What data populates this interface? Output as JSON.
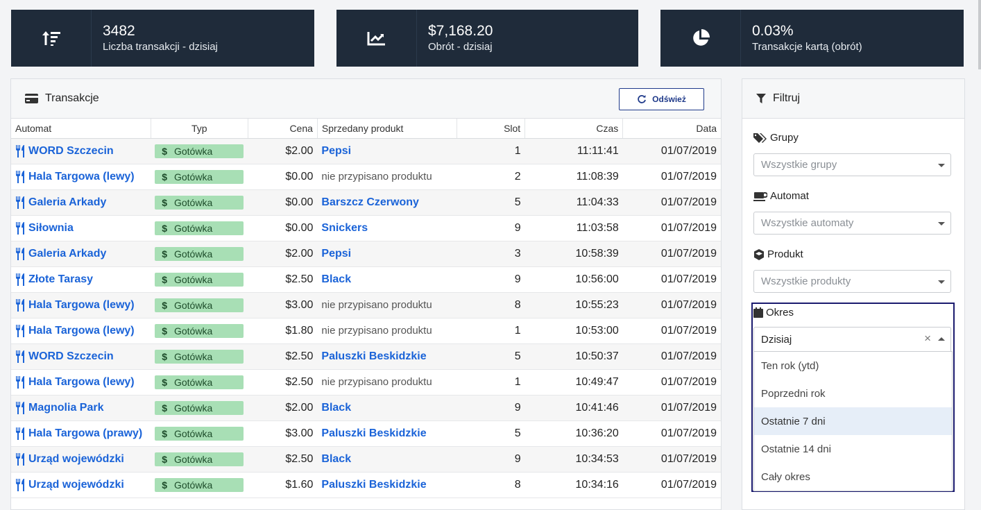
{
  "kpis": [
    {
      "value": "3482",
      "label": "Liczba transakcji - dzisiaj",
      "icon": "sort-amount-icon"
    },
    {
      "value": "$7,168.20",
      "label": "Obrót - dzisiaj",
      "icon": "chart-line-icon"
    },
    {
      "value": "0.03%",
      "label": "Transakcje kartą (obrót)",
      "icon": "pie-chart-icon"
    }
  ],
  "transactions": {
    "title": "Transakcje",
    "refresh_label": "Odśwież",
    "columns": [
      "Automat",
      "Typ",
      "Cena",
      "Sprzedany produkt",
      "Slot",
      "Czas",
      "Data"
    ],
    "rows": [
      {
        "machine": "WORD Szczecin",
        "type": "Gotówka",
        "price": "$2.00",
        "product": "Pepsi",
        "assigned": true,
        "slot": "1",
        "time": "11:11:41",
        "date": "01/07/2019"
      },
      {
        "machine": "Hala Targowa (lewy)",
        "type": "Gotówka",
        "price": "$0.00",
        "product": "nie przypisano produktu",
        "assigned": false,
        "slot": "2",
        "time": "11:08:39",
        "date": "01/07/2019"
      },
      {
        "machine": "Galeria Arkady",
        "type": "Gotówka",
        "price": "$0.00",
        "product": "Barszcz Czerwony",
        "assigned": true,
        "slot": "5",
        "time": "11:04:33",
        "date": "01/07/2019"
      },
      {
        "machine": "Siłownia",
        "type": "Gotówka",
        "price": "$0.00",
        "product": "Snickers",
        "assigned": true,
        "slot": "9",
        "time": "11:03:58",
        "date": "01/07/2019"
      },
      {
        "machine": "Galeria Arkady",
        "type": "Gotówka",
        "price": "$2.00",
        "product": "Pepsi",
        "assigned": true,
        "slot": "3",
        "time": "10:58:39",
        "date": "01/07/2019"
      },
      {
        "machine": "Złote Tarasy",
        "type": "Gotówka",
        "price": "$2.50",
        "product": "Black",
        "assigned": true,
        "slot": "9",
        "time": "10:56:00",
        "date": "01/07/2019"
      },
      {
        "machine": "Hala Targowa (lewy)",
        "type": "Gotówka",
        "price": "$3.00",
        "product": "nie przypisano produktu",
        "assigned": false,
        "slot": "8",
        "time": "10:55:23",
        "date": "01/07/2019"
      },
      {
        "machine": "Hala Targowa (lewy)",
        "type": "Gotówka",
        "price": "$1.80",
        "product": "nie przypisano produktu",
        "assigned": false,
        "slot": "1",
        "time": "10:53:00",
        "date": "01/07/2019"
      },
      {
        "machine": "WORD Szczecin",
        "type": "Gotówka",
        "price": "$2.50",
        "product": "Paluszki Beskidzkie",
        "assigned": true,
        "slot": "5",
        "time": "10:50:37",
        "date": "01/07/2019"
      },
      {
        "machine": "Hala Targowa (lewy)",
        "type": "Gotówka",
        "price": "$2.50",
        "product": "nie przypisano produktu",
        "assigned": false,
        "slot": "1",
        "time": "10:49:47",
        "date": "01/07/2019"
      },
      {
        "machine": "Magnolia Park",
        "type": "Gotówka",
        "price": "$2.00",
        "product": "Black",
        "assigned": true,
        "slot": "9",
        "time": "10:41:46",
        "date": "01/07/2019"
      },
      {
        "machine": "Hala Targowa (prawy)",
        "type": "Gotówka",
        "price": "$3.00",
        "product": "Paluszki Beskidzkie",
        "assigned": true,
        "slot": "5",
        "time": "10:36:20",
        "date": "01/07/2019"
      },
      {
        "machine": "Urząd wojewódzki",
        "type": "Gotówka",
        "price": "$2.50",
        "product": "Black",
        "assigned": true,
        "slot": "9",
        "time": "10:34:53",
        "date": "01/07/2019"
      },
      {
        "machine": "Urząd wojewódzki",
        "type": "Gotówka",
        "price": "$1.60",
        "product": "Paluszki Beskidzkie",
        "assigned": true,
        "slot": "8",
        "time": "10:34:16",
        "date": "01/07/2019"
      }
    ]
  },
  "filter": {
    "title": "Filtruj",
    "groups_label": "Grupy",
    "groups_placeholder": "Wszystkie grupy",
    "machine_label": "Automat",
    "machine_placeholder": "Wszystkie automaty",
    "product_label": "Produkt",
    "product_placeholder": "Wszystkie produkty",
    "period_label": "Okres",
    "period_value": "Dzisiaj",
    "clear_symbol": "×",
    "period_options": [
      "Ten rok (ytd)",
      "Poprzedni rok",
      "Ostatnie 7 dni",
      "Ostatnie 14 dni",
      "Cały okres"
    ],
    "highlighted_option": "Ostatnie 7 dni"
  },
  "colors": {
    "kpi_bg": "#1f2b3a",
    "link": "#1a63d8",
    "badge_bg": "#a8dfb5",
    "focus_outline": "#1a1a6e"
  }
}
